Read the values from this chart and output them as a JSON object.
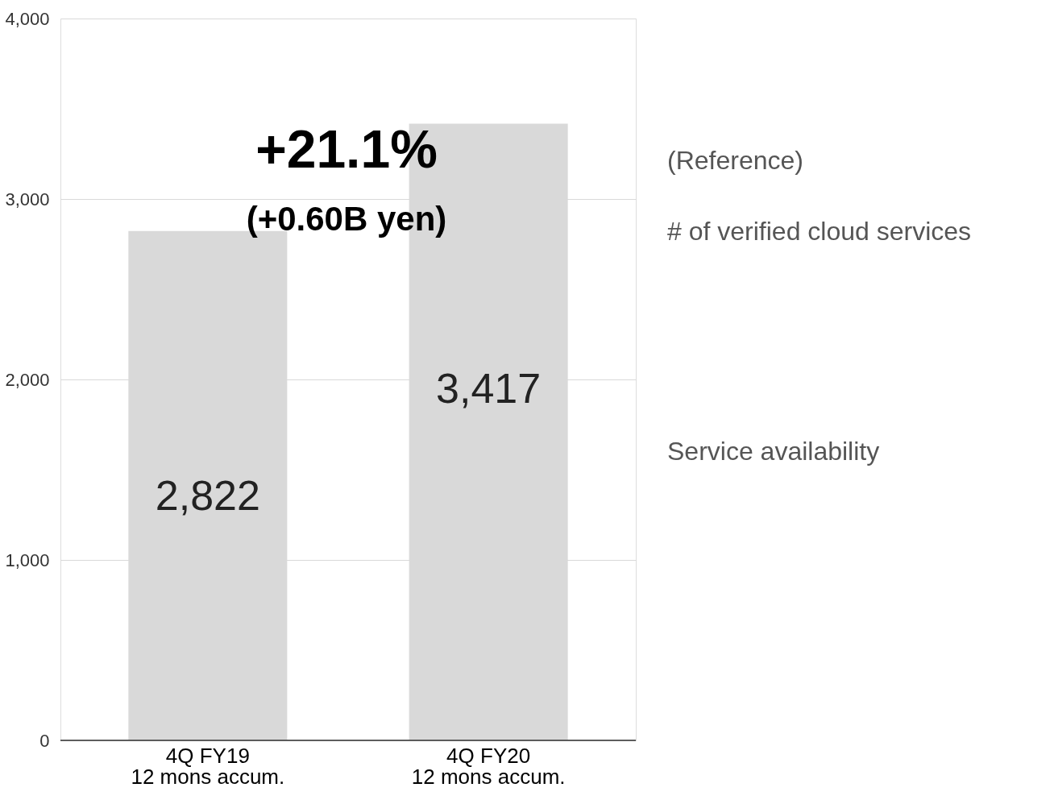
{
  "chart_data": {
    "type": "bar",
    "categories": [
      "4Q FY19\n12  mons accum.",
      "4Q FY20\n12  mons accum."
    ],
    "values": [
      2822,
      3417
    ],
    "color": "#d9d9d9",
    "ylim": [
      0,
      4000
    ],
    "yticks": [
      {
        "value": 0,
        "label": "0"
      },
      {
        "value": 1000,
        "label": "1,000"
      },
      {
        "value": 2000,
        "label": "2,000"
      },
      {
        "value": 3000,
        "label": "3,000"
      },
      {
        "value": 4000,
        "label": "4,000"
      }
    ],
    "grid": "y",
    "value_labels": [
      "2,822",
      "3,417"
    ],
    "annotations": [
      "+21.1%",
      "(+0.60B yen)",
      "(Reference)",
      "# of verified cloud services",
      "Service availability"
    ]
  }
}
